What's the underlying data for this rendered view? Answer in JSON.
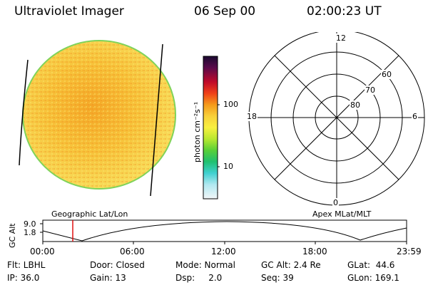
{
  "header": {
    "title": "Ultraviolet Imager",
    "date": "06 Sep 00",
    "time": "02:00:23 UT"
  },
  "colorbar": {
    "label": "photon cm⁻²s⁻¹",
    "ticks": [
      "100",
      "10"
    ]
  },
  "polar_plot": {
    "label_top": "12",
    "label_bottom": "0",
    "label_left": "18",
    "label_right": "6",
    "ring_labels": [
      "60",
      "70",
      "80"
    ]
  },
  "map_labels": {
    "left": "Geographic Lat/Lon",
    "right": "Apex MLat/MLT"
  },
  "altitude_plot": {
    "ylabel": "GC Alt",
    "y_ticks": [
      "9.0",
      "1.8"
    ],
    "x_ticks": [
      "00:00",
      "06:00",
      "12:00",
      "18:00",
      "23:59"
    ]
  },
  "info": {
    "row1": {
      "flt": "Flt: LBHL",
      "door": "Door: Closed",
      "mode": "Mode: Normal",
      "gcalt": "GC Alt: 2.4 Re",
      "glat": "GLat:  44.6"
    },
    "row2": {
      "ip": "IP: 36.0",
      "gain": "Gain: 13",
      "dsp": "Dsp:     2.0",
      "seq": "Seq: 39",
      "glon": "GLon: 169.1"
    }
  },
  "colors": {
    "disk_fill": "#f5c432",
    "disk_edge": "#7fd35a",
    "marker": "#e01010"
  }
}
